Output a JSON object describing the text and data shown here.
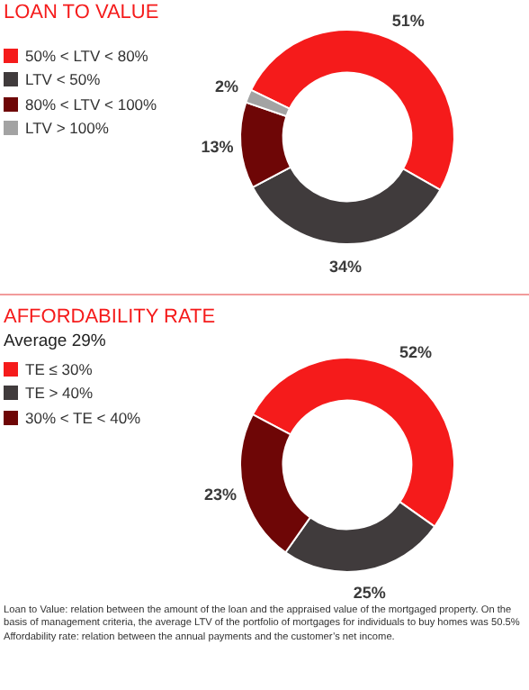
{
  "chart_data": [
    {
      "type": "donut",
      "title": "LOAN TO VALUE",
      "categories": [
        "50% < LTV < 80%",
        "LTV < 50%",
        "80% < LTV < 100%",
        "LTV > 100%"
      ],
      "values": [
        51,
        34,
        13,
        2
      ],
      "colors": [
        "#f51b1b",
        "#403b3c",
        "#6e0606",
        "#a3a3a3"
      ],
      "value_labels": [
        "51%",
        "34%",
        "13%",
        "2%"
      ],
      "legend": "top left"
    },
    {
      "type": "donut",
      "title": "AFFORDABILITY RATE",
      "subtitle": "Average 29%",
      "categories": [
        "TE ≤ 30%",
        "TE > 40%",
        "30% < TE < 40%"
      ],
      "values": [
        52,
        25,
        23
      ],
      "colors": [
        "#f51b1b",
        "#403b3c",
        "#6e0606"
      ],
      "value_labels": [
        "52%",
        "25%",
        "23%"
      ],
      "legend": "top left",
      "annotations": [
        "Loan to Value: relation between the amount of the loan and the appraised value of the mortgaged property. On the basis of management criteria, the average LTV of the portfolio of mortgages for individuals to buy homes was 50.5%",
        "Affordability rate: relation between the annual payments and the customer’s net income."
      ]
    }
  ]
}
